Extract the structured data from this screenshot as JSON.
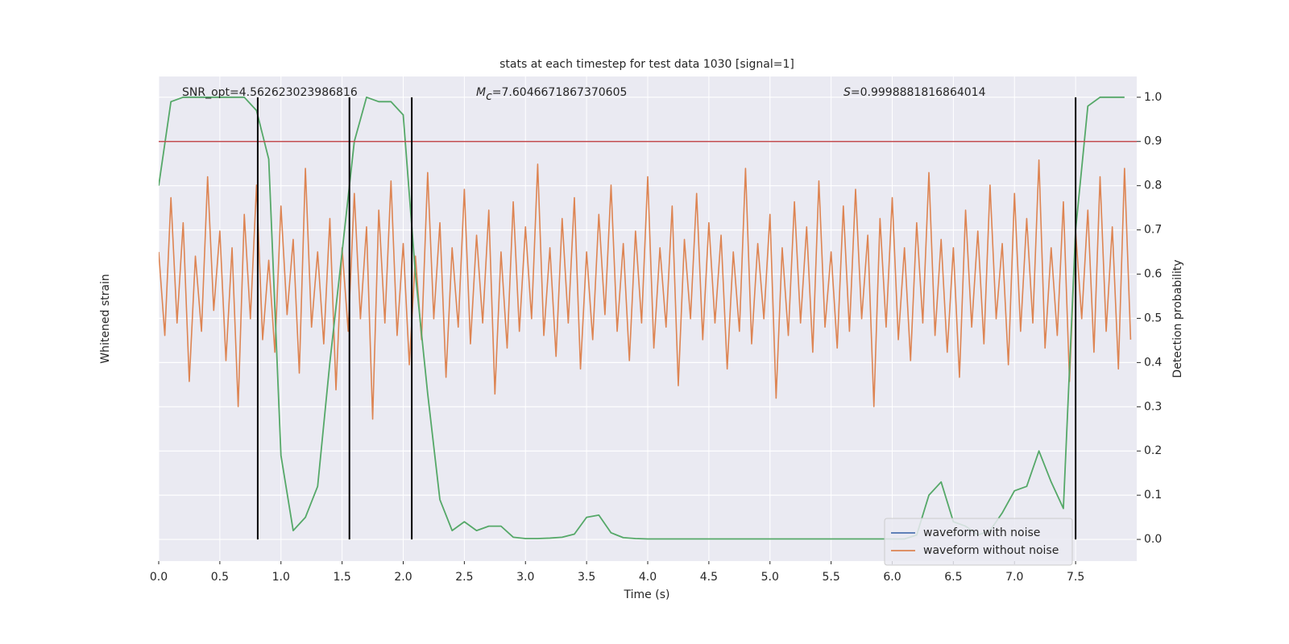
{
  "chart_data": {
    "type": "line",
    "title": "stats at each timestep for test data 1030 [signal=1]",
    "annotations": {
      "snr": "SNR_opt=4.562623023986816",
      "mc": {
        "symbol": "M",
        "subscript": "c",
        "text": "=7.6046671867370605"
      },
      "s": {
        "symbol": "S",
        "text": "=0.9998881816864014"
      }
    },
    "xlabel": "Time (s)",
    "ylabel": "Whitened strain",
    "y2label": "Detection probability",
    "xlim": [
      0,
      8.0
    ],
    "xticks": [
      {
        "value": 0,
        "label": "0.0"
      },
      0.5,
      {
        "value": 1,
        "label": "1.0"
      },
      1.5,
      {
        "value": 2,
        "label": "2.0"
      },
      2.5,
      {
        "value": 3,
        "label": "3.0"
      },
      3.5,
      {
        "value": 4,
        "label": "4.0"
      },
      4.5,
      {
        "value": 5,
        "label": "5.0"
      },
      5.5,
      {
        "value": 6,
        "label": "6.0"
      },
      6.5,
      {
        "value": 7,
        "label": "7.0"
      },
      7.5
    ],
    "ylim": [
      -6.6,
      5.0
    ],
    "y2lim": [
      -0.049,
      1.047
    ],
    "y2ticks": [
      {
        "value": 0,
        "label": "0.0"
      },
      0.1,
      0.2,
      0.3,
      0.4,
      0.5,
      0.6,
      0.7,
      0.8,
      0.9,
      {
        "value": 1,
        "label": "1.0"
      }
    ],
    "grid": true,
    "series": [
      {
        "name": "waveform without noise",
        "color": "#dd8452",
        "axis": "y",
        "x": [
          0,
          0.05,
          0.1,
          0.15,
          0.2,
          0.25,
          0.3,
          0.35,
          0.4,
          0.45,
          0.5,
          0.55,
          0.6,
          0.65,
          0.7,
          0.75,
          0.8,
          0.85,
          0.9,
          0.95,
          1,
          1.05,
          1.1,
          1.15,
          1.2,
          1.25,
          1.3,
          1.35,
          1.4,
          1.45,
          1.5,
          1.55,
          1.6,
          1.65,
          1.7,
          1.75,
          1.8,
          1.85,
          1.9,
          1.95,
          2,
          2.05,
          2.1,
          2.15,
          2.2,
          2.25,
          2.3,
          2.35,
          2.4,
          2.45,
          2.5,
          2.55,
          2.6,
          2.65,
          2.7,
          2.75,
          2.8,
          2.85,
          2.9,
          2.95,
          3,
          3.05,
          3.1,
          3.15,
          3.2,
          3.25,
          3.3,
          3.35,
          3.4,
          3.45,
          3.5,
          3.55,
          3.6,
          3.65,
          3.7,
          3.75,
          3.8,
          3.85,
          3.9,
          3.95,
          4,
          4.05,
          4.1,
          4.15,
          4.2,
          4.25,
          4.3,
          4.35,
          4.4,
          4.45,
          4.5,
          4.55,
          4.6,
          4.65,
          4.7,
          4.75,
          4.8,
          4.85,
          4.9,
          4.95,
          5,
          5.05,
          5.1,
          5.15,
          5.2,
          5.25,
          5.3,
          5.35,
          5.4,
          5.45,
          5.5,
          5.55,
          5.6,
          5.65,
          5.7,
          5.75,
          5.8,
          5.85,
          5.9,
          5.95,
          6,
          6.05,
          6.1,
          6.15,
          6.2,
          6.25,
          6.3,
          6.35,
          6.4,
          6.45,
          6.5,
          6.55,
          6.6,
          6.65,
          6.7,
          6.75,
          6.8,
          6.85,
          6.9,
          6.95,
          7,
          7.05,
          7.1,
          7.15,
          7.2,
          7.25,
          7.3,
          7.35,
          7.4,
          7.45,
          7.5,
          7.55,
          7.6,
          7.65,
          7.7,
          7.75,
          7.8,
          7.85,
          7.9,
          7.95
        ],
        "values": [
          0.8,
          -1.2,
          2.1,
          -0.9,
          1.5,
          -2.3,
          0.7,
          -1.1,
          2.6,
          -0.6,
          1.3,
          -1.8,
          0.9,
          -2.9,
          1.7,
          -0.8,
          2.4,
          -1.3,
          0.6,
          -1.6,
          1.9,
          -0.7,
          1.1,
          -2.1,
          2.8,
          -1.0,
          0.8,
          -1.4,
          1.6,
          -2.5,
          0.9,
          -1.1,
          2.2,
          -0.8,
          1.4,
          -3.2,
          1.8,
          -0.9,
          2.5,
          -1.2,
          1.0,
          -1.9,
          0.7,
          -1.3,
          2.7,
          -0.8,
          1.5,
          -2.2,
          0.9,
          -1.0,
          2.3,
          -1.4,
          1.2,
          -0.9,
          1.8,
          -2.6,
          0.8,
          -1.5,
          2.0,
          -1.1,
          1.4,
          -0.8,
          2.9,
          -1.2,
          0.9,
          -1.7,
          1.6,
          -0.9,
          2.1,
          -2.0,
          0.8,
          -1.3,
          1.7,
          -0.7,
          2.4,
          -1.1,
          1.0,
          -1.8,
          1.3,
          -0.9,
          2.6,
          -1.5,
          0.9,
          -1.0,
          1.9,
          -2.4,
          1.1,
          -0.8,
          2.2,
          -1.3,
          1.5,
          -0.9,
          1.2,
          -2.0,
          0.8,
          -1.1,
          2.8,
          -1.4,
          1.0,
          -0.8,
          1.7,
          -2.7,
          0.9,
          -1.2,
          2.0,
          -0.9,
          1.4,
          -1.6,
          2.5,
          -1.0,
          0.8,
          -1.5,
          1.9,
          -1.1,
          2.3,
          -0.8,
          1.2,
          -2.9,
          1.6,
          -1.0,
          2.1,
          -1.3,
          0.9,
          -1.8,
          1.5,
          -0.9,
          2.7,
          -1.2,
          1.1,
          -1.6,
          0.9,
          -2.2,
          1.8,
          -1.0,
          1.3,
          -1.4,
          2.4,
          -0.8,
          1.0,
          -1.9,
          2.2,
          -1.1,
          1.6,
          -0.9,
          3.0,
          -1.5,
          0.9,
          -1.2,
          2.0,
          -2.3,
          1.3,
          -0.8,
          1.8,
          -1.6,
          2.6,
          -1.1,
          1.4,
          -2.0,
          2.8,
          -1.3
        ]
      },
      {
        "color": "#55a868",
        "axis": "y2",
        "x": [
          0,
          0.1,
          0.2,
          0.3,
          0.4,
          0.5,
          0.6,
          0.7,
          0.8,
          0.9,
          1,
          1.1,
          1.2,
          1.3,
          1.4,
          1.5,
          1.6,
          1.7,
          1.8,
          1.9,
          2,
          2.1,
          2.2,
          2.3,
          2.4,
          2.5,
          2.6,
          2.7,
          2.8,
          2.9,
          3,
          3.1,
          3.2,
          3.3,
          3.4,
          3.5,
          3.6,
          3.7,
          3.8,
          3.9,
          4,
          4.1,
          4.2,
          4.3,
          4.4,
          4.5,
          4.6,
          4.7,
          4.8,
          4.9,
          5,
          5.1,
          5.2,
          5.3,
          5.4,
          5.5,
          5.6,
          5.7,
          5.8,
          5.9,
          6,
          6.1,
          6.2,
          6.3,
          6.4,
          6.5,
          6.6,
          6.7,
          6.8,
          6.9,
          7,
          7.1,
          7.2,
          7.3,
          7.4,
          7.5,
          7.6,
          7.7,
          7.8,
          7.9
        ],
        "values": [
          0.8,
          0.99,
          1.0,
          1.0,
          1.0,
          1.0,
          1.0,
          1.0,
          0.97,
          0.86,
          0.19,
          0.02,
          0.05,
          0.12,
          0.4,
          0.65,
          0.9,
          1.0,
          0.99,
          0.99,
          0.96,
          0.6,
          0.33,
          0.09,
          0.02,
          0.04,
          0.02,
          0.03,
          0.03,
          0.005,
          0.002,
          0.002,
          0.003,
          0.005,
          0.012,
          0.05,
          0.055,
          0.015,
          0.004,
          0.002,
          0.001,
          0.001,
          0.001,
          0.001,
          0.001,
          0.001,
          0.001,
          0.001,
          0.001,
          0.001,
          0.001,
          0.001,
          0.001,
          0.001,
          0.001,
          0.001,
          0.001,
          0.001,
          0.001,
          0.001,
          0.001,
          0.001,
          0.01,
          0.1,
          0.13,
          0.04,
          0.03,
          0.01,
          0.02,
          0.06,
          0.11,
          0.12,
          0.2,
          0.13,
          0.07,
          0.7,
          0.98,
          1.0,
          1.0,
          1.0
        ]
      }
    ],
    "vlines": [
      0.81,
      1.56,
      2.07,
      7.5
    ],
    "vline_span": [
      0,
      1
    ],
    "vline_color": "#000000",
    "hline": {
      "value": 0.9,
      "color": "#c44e52"
    },
    "legend": {
      "loc": "lower right",
      "entries": [
        {
          "name": "waveform with noise",
          "color": "#4c72b0"
        },
        {
          "name": "waveform without noise",
          "color": "#dd8452"
        }
      ]
    }
  }
}
